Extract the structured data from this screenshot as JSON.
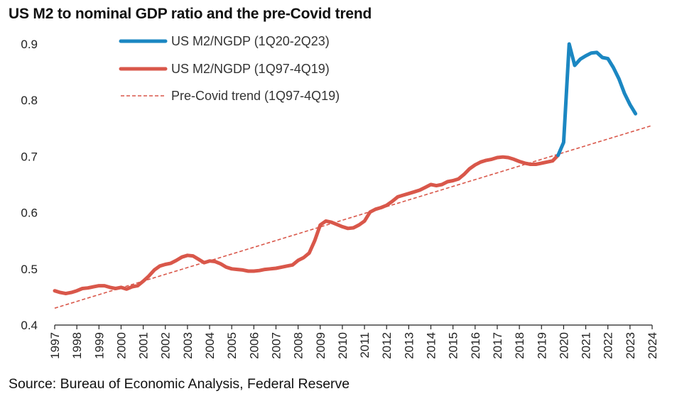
{
  "title": "US M2 to nominal GDP ratio and the pre-Covid trend",
  "source": "Source: Bureau of Economic Analysis, Federal Reserve",
  "colors": {
    "post_covid": "#1b87c2",
    "pre_covid": "#d9574a",
    "trend": "#d9574a",
    "axis": "#222222"
  },
  "chart_data": {
    "type": "line",
    "title": "US M2 to nominal GDP ratio and the pre-Covid trend",
    "xlabel": "",
    "ylabel": "",
    "xlim": [
      1997,
      2024
    ],
    "ylim": [
      0.4,
      0.9
    ],
    "yticks": [
      "0.4",
      "0.5",
      "0.6",
      "0.7",
      "0.8",
      "0.9"
    ],
    "xticks": [
      "1997",
      "1998",
      "1999",
      "2000",
      "2001",
      "2002",
      "2003",
      "2004",
      "2005",
      "2006",
      "2007",
      "2008",
      "2009",
      "2010",
      "2011",
      "2012",
      "2013",
      "2014",
      "2015",
      "2016",
      "2017",
      "2018",
      "2019",
      "2020",
      "2021",
      "2022",
      "2023",
      "2024"
    ],
    "grid": false,
    "legend_position": "top-left",
    "series": [
      {
        "name": "US M2/NGDP (1Q20-2Q23)",
        "style": "solid-thick",
        "color": "#1b87c2",
        "x": [
          2019.75,
          2020.0,
          2020.25,
          2020.5,
          2020.75,
          2021.0,
          2021.25,
          2021.5,
          2021.75,
          2022.0,
          2022.25,
          2022.5,
          2022.75,
          2023.0,
          2023.25
        ],
        "y": [
          0.702,
          0.725,
          0.9,
          0.862,
          0.873,
          0.879,
          0.884,
          0.885,
          0.876,
          0.874,
          0.858,
          0.838,
          0.812,
          0.792,
          0.776
        ]
      },
      {
        "name": "US M2/NGDP (1Q97-4Q19)",
        "style": "solid-thick",
        "color": "#d9574a",
        "x": [
          1997.0,
          1997.25,
          1997.5,
          1997.75,
          1998.0,
          1998.25,
          1998.5,
          1998.75,
          1999.0,
          1999.25,
          1999.5,
          1999.75,
          2000.0,
          2000.25,
          2000.5,
          2000.75,
          2001.0,
          2001.25,
          2001.5,
          2001.75,
          2002.0,
          2002.25,
          2002.5,
          2002.75,
          2003.0,
          2003.25,
          2003.5,
          2003.75,
          2004.0,
          2004.25,
          2004.5,
          2004.75,
          2005.0,
          2005.25,
          2005.5,
          2005.75,
          2006.0,
          2006.25,
          2006.5,
          2006.75,
          2007.0,
          2007.25,
          2007.5,
          2007.75,
          2008.0,
          2008.25,
          2008.5,
          2008.75,
          2009.0,
          2009.25,
          2009.5,
          2009.75,
          2010.0,
          2010.25,
          2010.5,
          2010.75,
          2011.0,
          2011.25,
          2011.5,
          2011.75,
          2012.0,
          2012.25,
          2012.5,
          2012.75,
          2013.0,
          2013.25,
          2013.5,
          2013.75,
          2014.0,
          2014.25,
          2014.5,
          2014.75,
          2015.0,
          2015.25,
          2015.5,
          2015.75,
          2016.0,
          2016.25,
          2016.5,
          2016.75,
          2017.0,
          2017.25,
          2017.5,
          2017.75,
          2018.0,
          2018.25,
          2018.5,
          2018.75,
          2019.0,
          2019.25,
          2019.5,
          2019.75
        ],
        "y": [
          0.461,
          0.458,
          0.456,
          0.458,
          0.461,
          0.465,
          0.466,
          0.468,
          0.47,
          0.47,
          0.467,
          0.465,
          0.467,
          0.464,
          0.468,
          0.47,
          0.478,
          0.487,
          0.498,
          0.505,
          0.508,
          0.51,
          0.515,
          0.521,
          0.524,
          0.523,
          0.517,
          0.511,
          0.514,
          0.513,
          0.509,
          0.503,
          0.5,
          0.499,
          0.498,
          0.496,
          0.496,
          0.497,
          0.499,
          0.5,
          0.501,
          0.503,
          0.505,
          0.507,
          0.515,
          0.52,
          0.528,
          0.55,
          0.578,
          0.585,
          0.583,
          0.579,
          0.575,
          0.572,
          0.573,
          0.578,
          0.585,
          0.601,
          0.606,
          0.609,
          0.613,
          0.62,
          0.628,
          0.631,
          0.634,
          0.637,
          0.64,
          0.645,
          0.65,
          0.648,
          0.65,
          0.655,
          0.657,
          0.66,
          0.668,
          0.678,
          0.685,
          0.69,
          0.693,
          0.695,
          0.698,
          0.699,
          0.698,
          0.695,
          0.691,
          0.688,
          0.686,
          0.686,
          0.688,
          0.69,
          0.692,
          0.702
        ]
      },
      {
        "name": "Pre-Covid trend (1Q97-4Q19)",
        "style": "dashed",
        "color": "#d9574a",
        "x": [
          1997.0,
          2024.0
        ],
        "y": [
          0.43,
          0.755
        ]
      }
    ]
  }
}
